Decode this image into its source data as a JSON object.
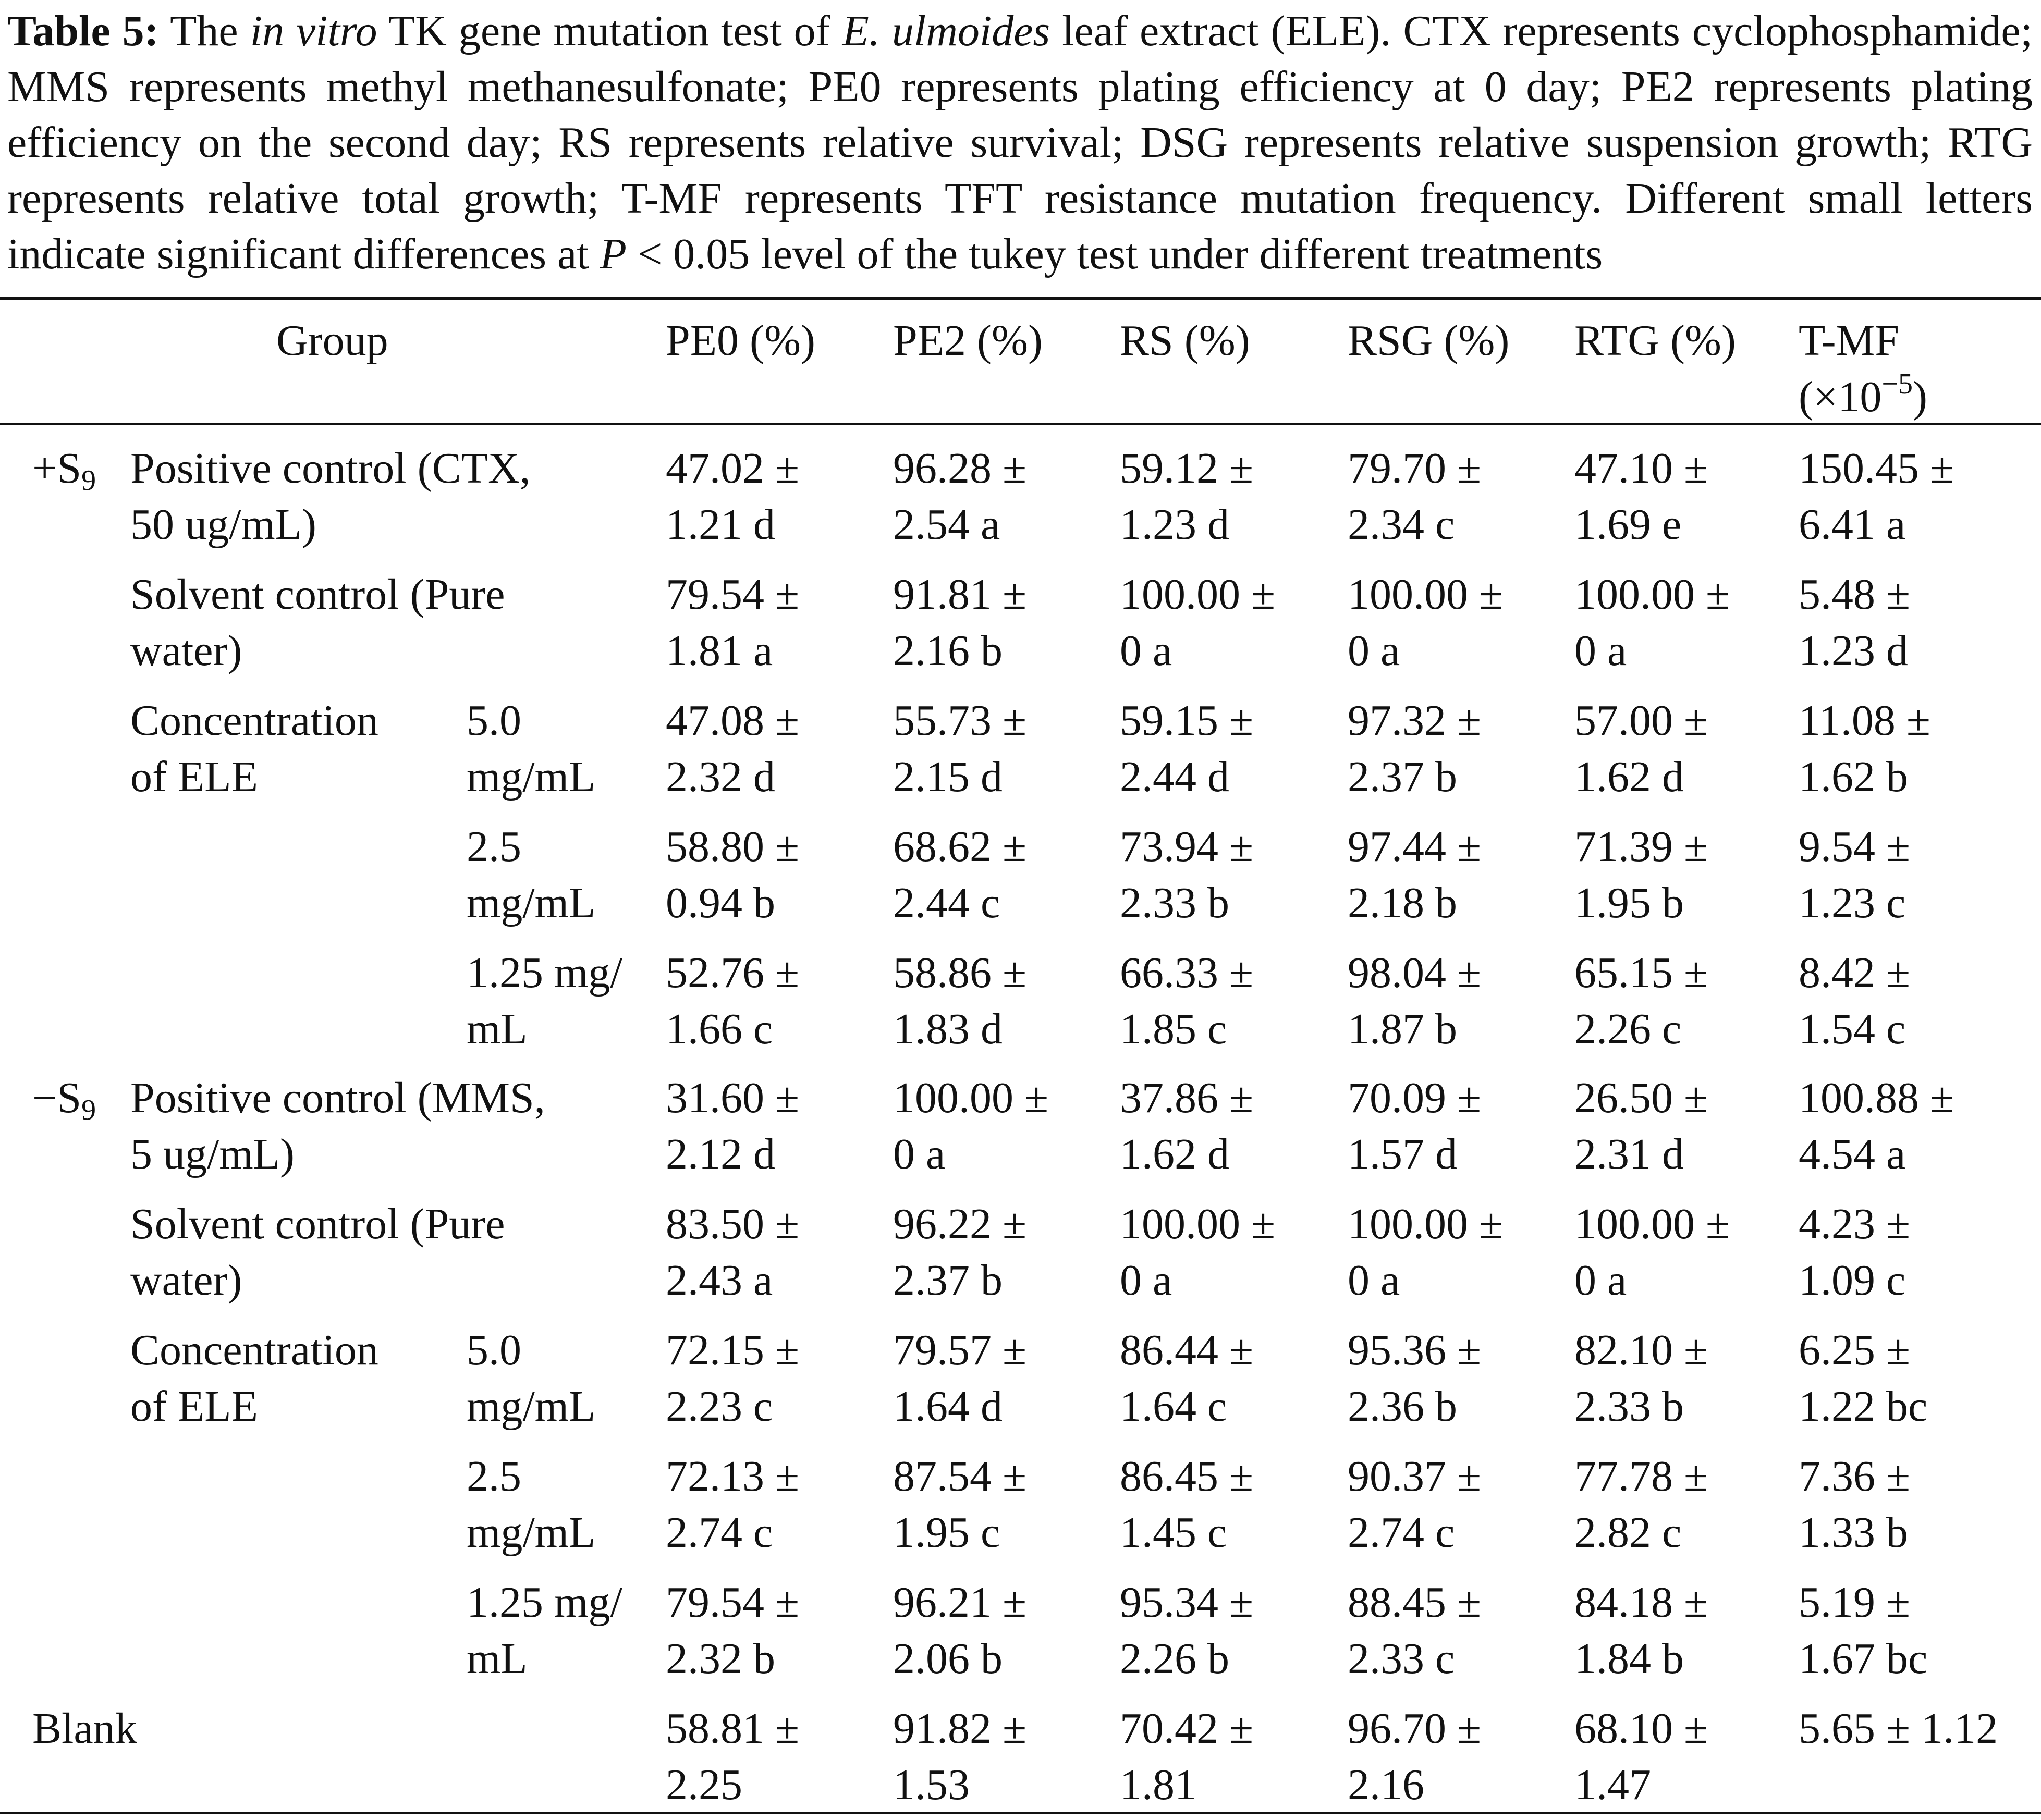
{
  "caption": {
    "label": "Table 5:",
    "t1": " The ",
    "italic1": "in vitro",
    "t2": " TK gene mutation test of ",
    "italic2": "E. ulmoides",
    "t3": " leaf extract (ELE). CTX represents cyclophosphamide; MMS represents methyl methanesulfonate; PE0 represents plating efficiency at 0 day; PE2 represents plating efficiency on the second day; RS represents relative survival; DSG represents relative suspension growth; RTG represents relative total growth; T-MF represents TFT resistance mutation frequency. Different small letters indicate significant differences at ",
    "italicP": "P",
    "t4": " < 0.05 level of the tukey test under different treatments"
  },
  "header": {
    "group": "Group",
    "pe0": "PE0 (%)",
    "pe2": "PE2 (%)",
    "rs": "RS (%)",
    "rsg": "RSG (%)",
    "rtg": "RTG (%)",
    "tmf": "T-MF",
    "tmf_unit_pre": "(×10",
    "tmf_exp": "−5",
    "tmf_unit_post": ")"
  },
  "blocks": {
    "plus": {
      "sign": "+S",
      "sub": "9"
    },
    "minus": {
      "sign": "−S",
      "sub": "9"
    }
  },
  "rows": [
    {
      "l1": "Positive control (CTX,",
      "l2": "50 ug/mL)",
      "c1": "",
      "c2": "",
      "v": [
        [
          "47.02 ±",
          "1.21 d"
        ],
        [
          "96.28 ±",
          "2.54 a"
        ],
        [
          "59.12 ±",
          "1.23 d"
        ],
        [
          "79.70 ±",
          "2.34 c"
        ],
        [
          "47.10 ±",
          "1.69 e"
        ],
        [
          "150.45 ±",
          "6.41 a"
        ]
      ]
    },
    {
      "l1": "Solvent control (Pure",
      "l2": "water)",
      "c1": "",
      "c2": "",
      "v": [
        [
          "79.54 ±",
          "1.81 a"
        ],
        [
          "91.81 ±",
          "2.16 b"
        ],
        [
          "100.00 ±",
          "0 a"
        ],
        [
          "100.00 ±",
          "0 a"
        ],
        [
          "100.00 ±",
          "0 a"
        ],
        [
          "5.48 ±",
          "1.23 d"
        ]
      ]
    },
    {
      "l1": "Concentration",
      "l2": "of ELE",
      "c1": "5.0",
      "c2": "mg/mL",
      "v": [
        [
          "47.08 ±",
          "2.32 d"
        ],
        [
          "55.73 ±",
          "2.15 d"
        ],
        [
          "59.15 ±",
          "2.44 d"
        ],
        [
          "97.32 ±",
          "2.37 b"
        ],
        [
          "57.00 ±",
          "1.62 d"
        ],
        [
          "11.08 ±",
          "1.62 b"
        ]
      ]
    },
    {
      "l1": "",
      "l2": "",
      "c1": "2.5",
      "c2": "mg/mL",
      "v": [
        [
          "58.80 ±",
          "0.94 b"
        ],
        [
          "68.62 ±",
          "2.44 c"
        ],
        [
          "73.94 ±",
          "2.33 b"
        ],
        [
          "97.44 ±",
          "2.18 b"
        ],
        [
          "71.39 ±",
          "1.95 b"
        ],
        [
          "9.54 ±",
          "1.23 c"
        ]
      ]
    },
    {
      "l1": "",
      "l2": "",
      "c1": "1.25 mg/",
      "c2": "mL",
      "v": [
        [
          "52.76 ±",
          "1.66 c"
        ],
        [
          "58.86 ±",
          "1.83 d"
        ],
        [
          "66.33 ±",
          "1.85 c"
        ],
        [
          "98.04 ±",
          "1.87 b"
        ],
        [
          "65.15 ±",
          "2.26 c"
        ],
        [
          "8.42 ±",
          "1.54 c"
        ]
      ]
    },
    {
      "l1": "Positive control (MMS,",
      "l2": "5 ug/mL)",
      "c1": "",
      "c2": "",
      "v": [
        [
          "31.60 ±",
          "2.12 d"
        ],
        [
          "100.00 ±",
          "0 a"
        ],
        [
          "37.86 ±",
          "1.62 d"
        ],
        [
          "70.09 ±",
          "1.57 d"
        ],
        [
          "26.50 ±",
          "2.31 d"
        ],
        [
          "100.88 ±",
          "4.54 a"
        ]
      ]
    },
    {
      "l1": "Solvent control (Pure",
      "l2": "water)",
      "c1": "",
      "c2": "",
      "v": [
        [
          "83.50 ±",
          "2.43 a"
        ],
        [
          "96.22 ±",
          "2.37 b"
        ],
        [
          "100.00 ±",
          "0 a"
        ],
        [
          "100.00 ±",
          "0 a"
        ],
        [
          "100.00 ±",
          "0 a"
        ],
        [
          "4.23 ±",
          "1.09 c"
        ]
      ]
    },
    {
      "l1": "Concentration",
      "l2": "of ELE",
      "c1": "5.0",
      "c2": "mg/mL",
      "v": [
        [
          "72.15 ±",
          "2.23 c"
        ],
        [
          "79.57 ±",
          "1.64 d"
        ],
        [
          "86.44 ±",
          "1.64 c"
        ],
        [
          "95.36 ±",
          "2.36 b"
        ],
        [
          "82.10 ±",
          "2.33 b"
        ],
        [
          "6.25 ±",
          "1.22 bc"
        ]
      ]
    },
    {
      "l1": "",
      "l2": "",
      "c1": "2.5",
      "c2": "mg/mL",
      "v": [
        [
          "72.13 ±",
          "2.74 c"
        ],
        [
          "87.54 ±",
          "1.95 c"
        ],
        [
          "86.45 ±",
          "1.45 c"
        ],
        [
          "90.37 ±",
          "2.74 c"
        ],
        [
          "77.78 ±",
          "2.82 c"
        ],
        [
          "7.36 ±",
          "1.33 b"
        ]
      ]
    },
    {
      "l1": "",
      "l2": "",
      "c1": "1.25 mg/",
      "c2": "mL",
      "v": [
        [
          "79.54 ±",
          "2.32 b"
        ],
        [
          "96.21 ±",
          "2.06 b"
        ],
        [
          "95.34 ±",
          "2.26 b"
        ],
        [
          "88.45 ±",
          "2.33 c"
        ],
        [
          "84.18 ±",
          "1.84 b"
        ],
        [
          "5.19 ±",
          "1.67 bc"
        ]
      ]
    },
    {
      "l1": "Blank",
      "l2": "",
      "c1": "",
      "c2": "",
      "v": [
        [
          "58.81 ±",
          "2.25"
        ],
        [
          "91.82 ±",
          "1.53"
        ],
        [
          "70.42 ±",
          "1.81"
        ],
        [
          "96.70 ±",
          "2.16"
        ],
        [
          "68.10 ±",
          "1.47"
        ],
        [
          "5.65 ± 1.12",
          ""
        ]
      ]
    }
  ]
}
